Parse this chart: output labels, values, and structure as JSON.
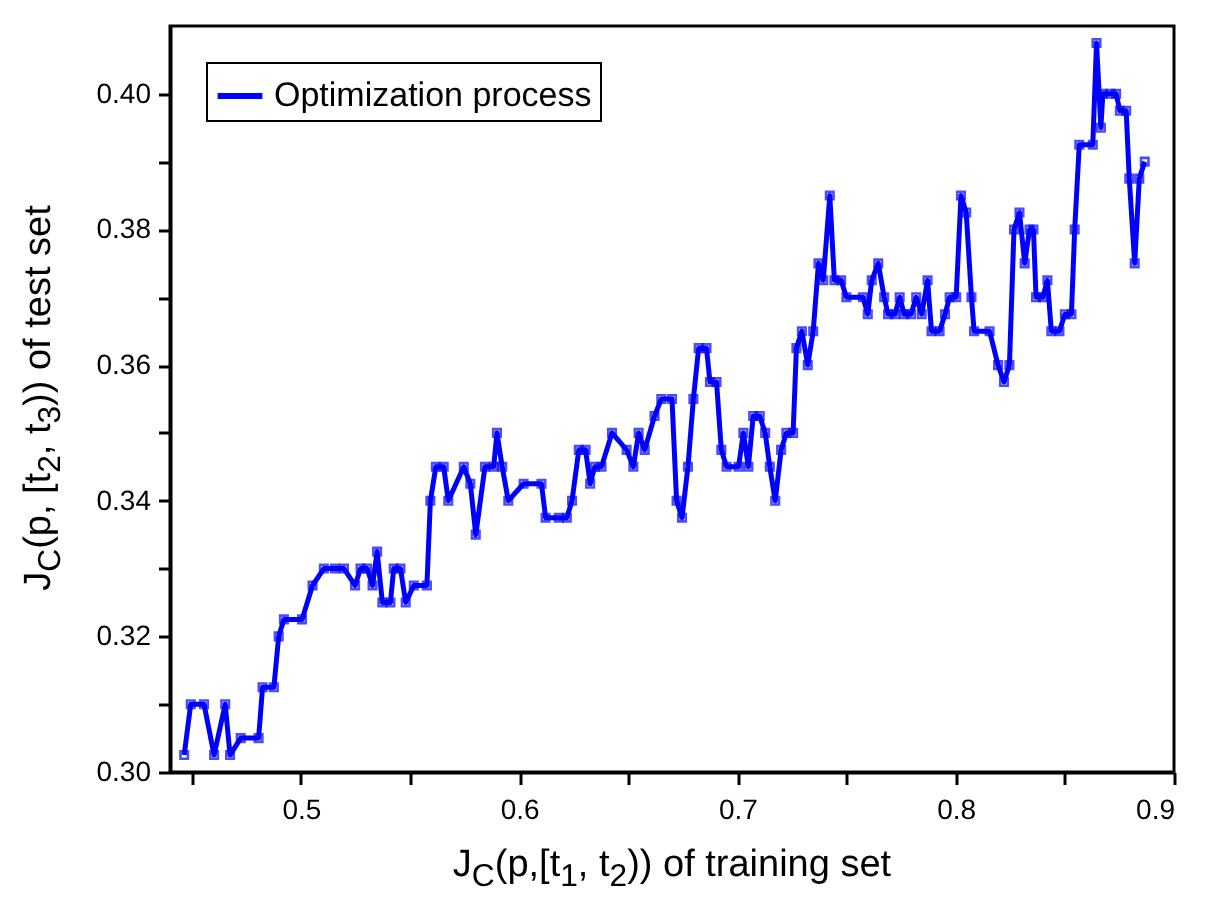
{
  "chart_data": {
    "type": "line",
    "xlabel": "J$_{C}$(p,[t$_{1}$, t$_{2}$)) of training set",
    "ylabel": "J$_{C}$(p, [t$_{2}$, t$_{3}$)) of test set",
    "xlim": [
      0.44,
      0.9
    ],
    "xticks": [
      {
        "value": 0.45,
        "label": null
      },
      0.5,
      {
        "value": 0.55,
        "label": null
      },
      0.6,
      {
        "value": 0.65,
        "label": null
      },
      0.7,
      {
        "value": 0.75,
        "label": null
      },
      0.8,
      {
        "value": 0.85,
        "label": null
      },
      0.9
    ],
    "ylim": [
      0.3,
      0.41
    ],
    "yticks": [
      {
        "value": 0.3,
        "label": "0.30"
      },
      {
        "value": 0.31,
        "label": null
      },
      {
        "value": 0.32,
        "label": "0.32"
      },
      {
        "value": 0.33,
        "label": null
      },
      {
        "value": 0.34,
        "label": "0.34"
      },
      {
        "value": 0.35,
        "label": null
      },
      {
        "value": 0.36,
        "label": "0.36"
      },
      {
        "value": 0.37,
        "label": null
      },
      {
        "value": 0.38,
        "label": "0.38"
      },
      {
        "value": 0.39,
        "label": null
      },
      {
        "value": 0.4,
        "label": "0.40"
      }
    ],
    "grid": false,
    "legend": "top left",
    "marker": "square",
    "line_style": "solid",
    "series": [
      {
        "name": "Optimization process",
        "color": "#0000ff",
        "x": [
          0.4465,
          0.4495,
          0.4556,
          0.4602,
          0.4653,
          0.4675,
          0.4724,
          0.4806,
          0.4824,
          0.4876,
          0.4898,
          0.4922,
          0.5005,
          0.5053,
          0.5105,
          0.5156,
          0.5197,
          0.5248,
          0.5273,
          0.5303,
          0.5328,
          0.5349,
          0.5373,
          0.541,
          0.5425,
          0.5456,
          0.548,
          0.5517,
          0.5577,
          0.5593,
          0.5618,
          0.5654,
          0.5675,
          0.5746,
          0.5776,
          0.5801,
          0.5843,
          0.5883,
          0.5898,
          0.5922,
          0.595,
          0.602,
          0.6102,
          0.6121,
          0.6181,
          0.6218,
          0.6242,
          0.6273,
          0.6304,
          0.6325,
          0.6346,
          0.6377,
          0.6425,
          0.6492,
          0.6523,
          0.6547,
          0.6575,
          0.662,
          0.6651,
          0.67,
          0.6721,
          0.6746,
          0.6773,
          0.6798,
          0.6822,
          0.6858,
          0.6874,
          0.6904,
          0.6926,
          0.695,
          0.7005,
          0.7027,
          0.705,
          0.7072,
          0.7102,
          0.7127,
          0.7148,
          0.7173,
          0.72,
          0.7224,
          0.7255,
          0.727,
          0.7295,
          0.7322,
          0.7347,
          0.7371,
          0.7393,
          0.7423,
          0.7444,
          0.7475,
          0.7499,
          0.7575,
          0.7597,
          0.7615,
          0.7645,
          0.7672,
          0.769,
          0.7722,
          0.7743,
          0.7764,
          0.7795,
          0.7819,
          0.7844,
          0.7871,
          0.7889,
          0.7926,
          0.7951,
          0.7972,
          0.8002,
          0.8024,
          0.8048,
          0.8072,
          0.8084,
          0.8155,
          0.8194,
          0.8221,
          0.8246,
          0.8267,
          0.8292,
          0.8316,
          0.8338,
          0.8356,
          0.8368,
          0.8399,
          0.842,
          0.8438,
          0.8475,
          0.85,
          0.853,
          0.8545,
          0.8566,
          0.8628,
          0.8645,
          0.8665,
          0.8674,
          0.8709,
          0.8735,
          0.8752,
          0.8781,
          0.8795,
          0.882,
          0.8841,
          0.8866
        ],
        "values": [
          0.3025,
          0.31,
          0.31,
          0.3025,
          0.31,
          0.3025,
          0.305,
          0.305,
          0.3125,
          0.3125,
          0.32,
          0.3225,
          0.3225,
          0.3275,
          0.33,
          0.33,
          0.33,
          0.3275,
          0.33,
          0.33,
          0.3275,
          0.3325,
          0.325,
          0.325,
          0.33,
          0.33,
          0.325,
          0.3275,
          0.3275,
          0.34,
          0.345,
          0.345,
          0.34,
          0.345,
          0.3425,
          0.335,
          0.345,
          0.345,
          0.35,
          0.345,
          0.34,
          0.3425,
          0.3425,
          0.3375,
          0.3375,
          0.3375,
          0.34,
          0.3475,
          0.3475,
          0.3425,
          0.345,
          0.345,
          0.35,
          0.3475,
          0.345,
          0.35,
          0.3475,
          0.3525,
          0.355,
          0.355,
          0.34,
          0.3375,
          0.345,
          0.355,
          0.3625,
          0.3625,
          0.3575,
          0.3575,
          0.3475,
          0.345,
          0.345,
          0.35,
          0.345,
          0.3525,
          0.3525,
          0.35,
          0.345,
          0.34,
          0.3475,
          0.35,
          0.35,
          0.3625,
          0.365,
          0.36,
          0.365,
          0.375,
          0.3725,
          0.385,
          0.3725,
          0.3725,
          0.37,
          0.37,
          0.3675,
          0.3725,
          0.375,
          0.37,
          0.3675,
          0.3675,
          0.37,
          0.3675,
          0.3675,
          0.37,
          0.3675,
          0.3725,
          0.365,
          0.365,
          0.3675,
          0.37,
          0.37,
          0.385,
          0.3825,
          0.37,
          0.365,
          0.365,
          0.36,
          0.3575,
          0.36,
          0.38,
          0.3825,
          0.375,
          0.38,
          0.38,
          0.37,
          0.37,
          0.3725,
          0.365,
          0.365,
          0.3675,
          0.3675,
          0.38,
          0.3925,
          0.3925,
          0.4075,
          0.395,
          0.4,
          0.4,
          0.4,
          0.3975,
          0.3975,
          0.3875,
          0.375,
          0.3875,
          0.39
        ]
      }
    ]
  }
}
